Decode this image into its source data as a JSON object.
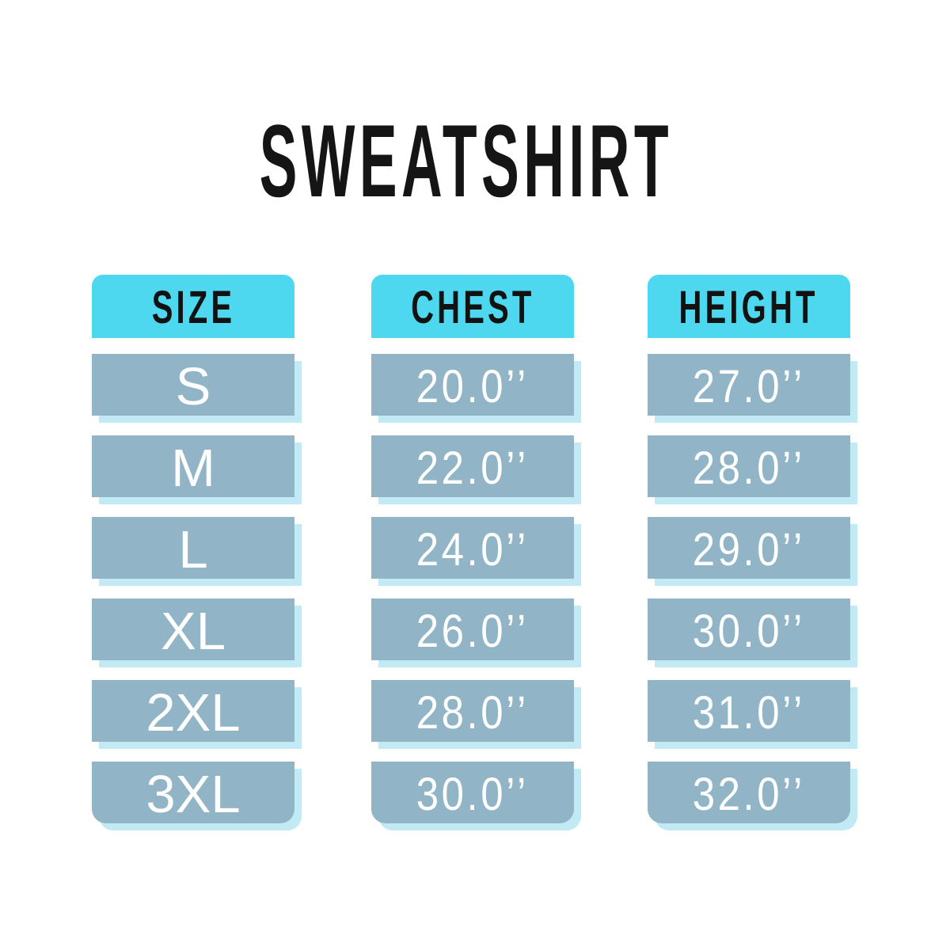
{
  "title": "SWEATSHIRT",
  "colors": {
    "background": "#ffffff",
    "header_cyan": "#4ed8f0",
    "row_blue": "#91b5c6",
    "shadow_cyan": "#c1eaf4",
    "header_text": "#121212",
    "row_text": "#ffffff",
    "title_text": "#151515"
  },
  "chart_data": {
    "type": "table",
    "title": "SWEATSHIRT",
    "columns": [
      {
        "header": "SIZE",
        "values": [
          "S",
          "M",
          "L",
          "XL",
          "2XL",
          "3XL"
        ]
      },
      {
        "header": "CHEST",
        "values": [
          "20.0’’",
          "22.0’’",
          "24.0’’",
          "26.0’’",
          "28.0’’",
          "30.0’’"
        ]
      },
      {
        "header": "HEIGHT",
        "values": [
          "27.0’’",
          "28.0’’",
          "29.0’’",
          "30.0’’",
          "31.0’’",
          "32.0’’"
        ]
      }
    ]
  }
}
